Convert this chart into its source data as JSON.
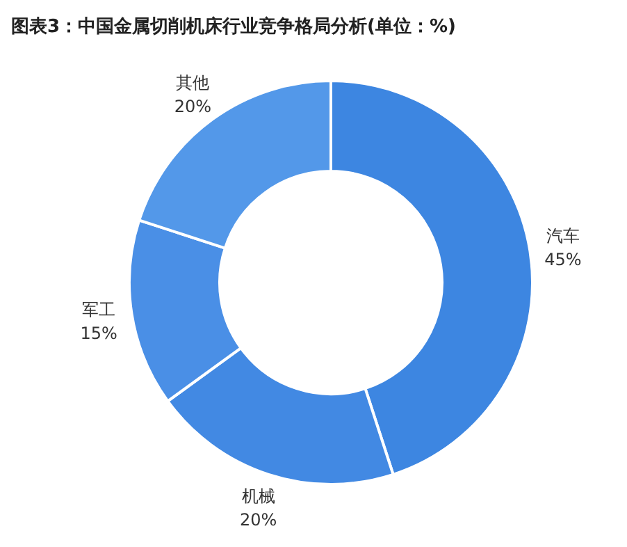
{
  "chart_data": {
    "type": "donut",
    "title": "图表3：中国金属切削机床行业竞争格局分析(单位：%)",
    "categories": [
      "汽车",
      "机械",
      "军工",
      "其他"
    ],
    "values": [
      45,
      20,
      15,
      20
    ],
    "value_labels": [
      "45%",
      "20%",
      "15%",
      "20%"
    ],
    "colors": [
      "#3d86e1",
      "#4289e3",
      "#4a8fe6",
      "#5398e9"
    ]
  }
}
